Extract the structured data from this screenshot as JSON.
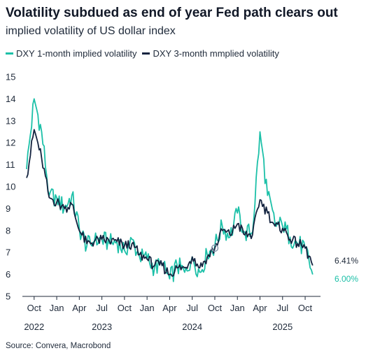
{
  "chart_data": {
    "type": "line",
    "title": "Volatility subdued as end of year Fed path clears out",
    "subtitle": "implied volatility of US dollar index",
    "source": "Source: Convera, Macrobond",
    "ylim": [
      5,
      15
    ],
    "yticks": [
      "5",
      "6",
      "7",
      "8",
      "9",
      "10",
      "11",
      "12",
      "13",
      "14",
      "15"
    ],
    "xticks": [
      {
        "x": "2022-10",
        "label": "Oct"
      },
      {
        "x": "2023-01",
        "label": "Jan"
      },
      {
        "x": "2023-04",
        "label": "Apr"
      },
      {
        "x": "2023-07",
        "label": "Jul"
      },
      {
        "x": "2023-10",
        "label": "Oct"
      },
      {
        "x": "2024-01",
        "label": "Jan"
      },
      {
        "x": "2024-04",
        "label": "Apr"
      },
      {
        "x": "2024-07",
        "label": "Jul"
      },
      {
        "x": "2024-10",
        "label": "Oct"
      },
      {
        "x": "2025-01",
        "label": "Jan"
      },
      {
        "x": "2025-04",
        "label": "Apr"
      },
      {
        "x": "2025-07",
        "label": "Jul"
      },
      {
        "x": "2025-10",
        "label": "Oct"
      }
    ],
    "years": [
      {
        "x": "2022-10",
        "label": "2022"
      },
      {
        "x": "2023-07",
        "label": "2023"
      },
      {
        "x": "2024-07",
        "label": "2024"
      },
      {
        "x": "2025-07",
        "label": "2025"
      }
    ],
    "grid": false,
    "legend_position": "top-left",
    "series": [
      {
        "name": "DXY 1-month implied volatility",
        "color": "#1cc0a8",
        "end_label": "6.00%",
        "x": [
          "2022-09",
          "2022-10",
          "2022-11",
          "2022-12",
          "2023-01",
          "2023-02",
          "2023-03",
          "2023-04",
          "2023-05",
          "2023-06",
          "2023-07",
          "2023-08",
          "2023-09",
          "2023-10",
          "2023-11",
          "2023-12",
          "2024-01",
          "2024-02",
          "2024-03",
          "2024-04",
          "2024-05",
          "2024-06",
          "2024-07",
          "2024-08",
          "2024-09",
          "2024-10",
          "2024-11",
          "2024-12",
          "2025-01",
          "2025-02",
          "2025-03",
          "2025-04",
          "2025-05",
          "2025-06",
          "2025-07",
          "2025-08",
          "2025-09",
          "2025-10",
          "2025-11"
        ],
        "values": [
          10.8,
          14.0,
          12.5,
          9.6,
          9.5,
          9.0,
          9.6,
          8.1,
          7.3,
          7.5,
          7.6,
          7.4,
          7.5,
          7.1,
          7.6,
          6.8,
          6.7,
          6.3,
          6.4,
          5.8,
          6.4,
          6.1,
          6.8,
          6.1,
          6.9,
          7.3,
          8.2,
          7.7,
          8.8,
          7.9,
          7.9,
          12.5,
          9.6,
          8.3,
          8.2,
          7.7,
          7.4,
          7.2,
          6.0
        ]
      },
      {
        "name": "DXY 3-month mmplied volatility",
        "color": "#13233f",
        "end_label": "6.41%",
        "x": [
          "2022-09",
          "2022-10",
          "2022-11",
          "2022-12",
          "2023-01",
          "2023-02",
          "2023-03",
          "2023-04",
          "2023-05",
          "2023-06",
          "2023-07",
          "2023-08",
          "2023-09",
          "2023-10",
          "2023-11",
          "2023-12",
          "2024-01",
          "2024-02",
          "2024-03",
          "2024-04",
          "2024-05",
          "2024-06",
          "2024-07",
          "2024-08",
          "2024-09",
          "2024-10",
          "2024-11",
          "2024-12",
          "2025-01",
          "2025-02",
          "2025-03",
          "2025-04",
          "2025-05",
          "2025-06",
          "2025-07",
          "2025-08",
          "2025-09",
          "2025-10",
          "2025-11"
        ],
        "values": [
          10.4,
          12.6,
          11.3,
          9.5,
          9.3,
          9.0,
          9.2,
          8.0,
          7.4,
          7.5,
          7.6,
          7.5,
          7.5,
          7.3,
          7.4,
          6.9,
          6.7,
          6.4,
          6.4,
          6.0,
          6.3,
          6.3,
          6.8,
          6.3,
          6.8,
          7.2,
          8.0,
          7.8,
          8.3,
          7.8,
          7.8,
          9.4,
          8.8,
          8.2,
          8.1,
          7.6,
          7.4,
          7.2,
          6.41
        ]
      }
    ],
    "annotations": [
      {
        "type": "circle-marker",
        "x": "2024-10",
        "y": 7.2,
        "color": "#8a9cb0"
      }
    ]
  }
}
